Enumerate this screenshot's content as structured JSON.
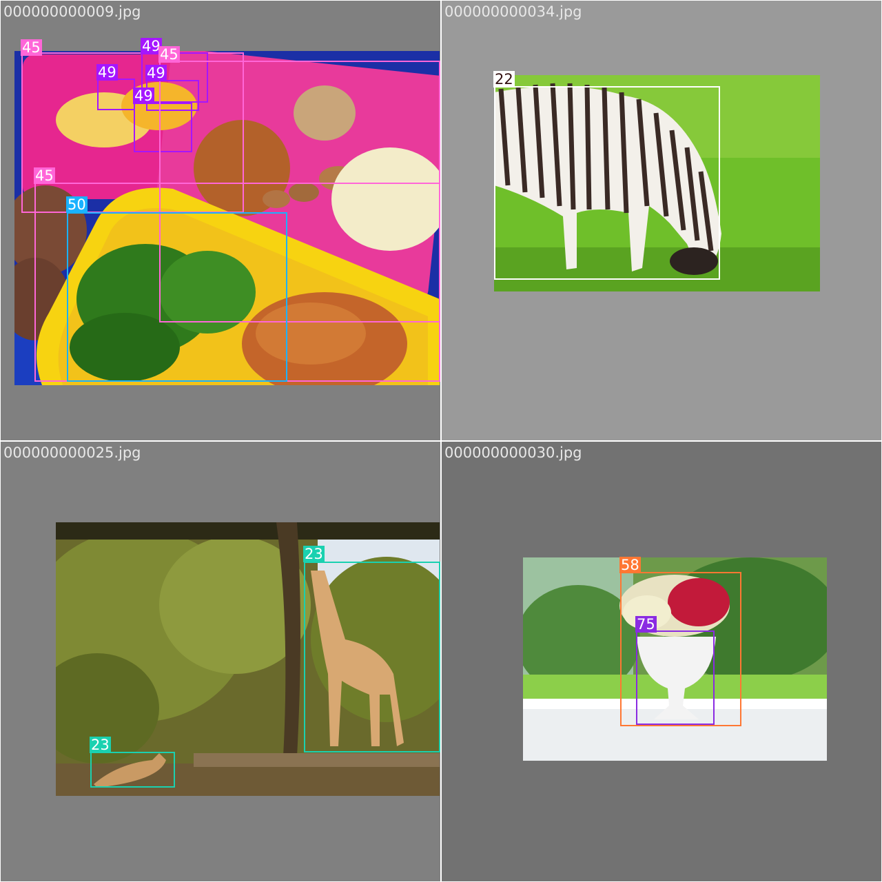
{
  "tiles": [
    {
      "filename": "000000000009.jpg",
      "detections": [
        "45",
        "49",
        "45",
        "49",
        "49",
        "49",
        "45",
        "50",
        "45"
      ]
    },
    {
      "filename": "000000000034.jpg",
      "detections": [
        "22"
      ]
    },
    {
      "filename": "000000000025.jpg",
      "detections": [
        "23",
        "23"
      ]
    },
    {
      "filename": "000000000030.jpg",
      "detections": [
        "58",
        "75"
      ]
    }
  ],
  "colors": {
    "class_45": "#ff66d8",
    "class_49": "#a516ff",
    "class_50": "#1ab2ff",
    "class_22": "#ffffff",
    "class_23": "#1ad1b0",
    "class_58": "#ff7733",
    "class_75": "#8a2be2"
  }
}
